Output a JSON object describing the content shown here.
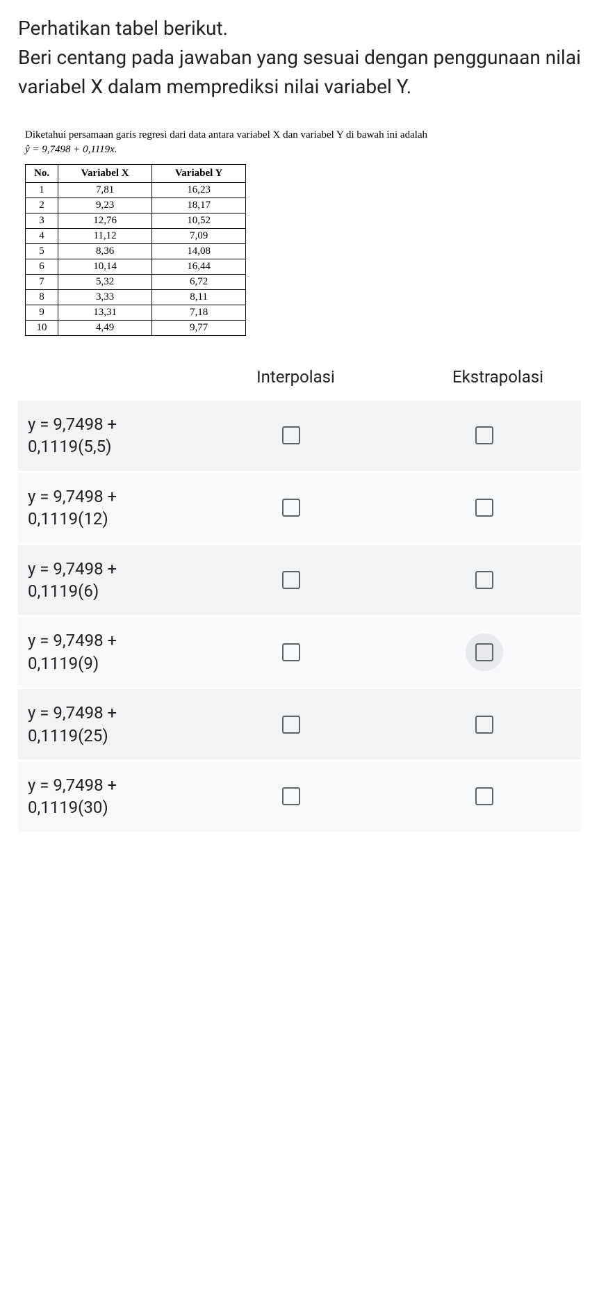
{
  "question": "Perhatikan tabel berikut.\nBeri centang pada jawaban yang sesuai dengan penggunaan nilai variabel X dalam memprediksi nilai variabel Y.",
  "info_text": "Diketahui persamaan garis regresi dari data antara variabel X dan variabel Y di bawah ini adalah",
  "equation": "ŷ = 9,7498 + 0,1119x.",
  "table": {
    "headers": [
      "No.",
      "Variabel X",
      "Variabel Y"
    ],
    "rows": [
      [
        "1",
        "7,81",
        "16,23"
      ],
      [
        "2",
        "9,23",
        "18,17"
      ],
      [
        "3",
        "12,76",
        "10,52"
      ],
      [
        "4",
        "11,12",
        "7,09"
      ],
      [
        "5",
        "8,36",
        "14,08"
      ],
      [
        "6",
        "10,14",
        "16,44"
      ],
      [
        "7",
        "5,32",
        "6,72"
      ],
      [
        "8",
        "3,33",
        "8,11"
      ],
      [
        "9",
        "13,31",
        "7,18"
      ],
      [
        "10",
        "4,49",
        "9,77"
      ]
    ]
  },
  "columns": {
    "interpolasi": "Interpolasi",
    "ekstrapolasi": "Ekstrapolasi"
  },
  "answers": [
    {
      "label": "y = 9,7498 + 0,1119(5,5)",
      "highlight_col": -1
    },
    {
      "label": "y = 9,7498 + 0,1119(12)",
      "highlight_col": -1
    },
    {
      "label": "y = 9,7498 + 0,1119(6)",
      "highlight_col": -1
    },
    {
      "label": "y = 9,7498 + 0,1119(9)",
      "highlight_col": 1
    },
    {
      "label": "y = 9,7498 + 0,1119(25)",
      "highlight_col": -1
    },
    {
      "label": "y = 9,7498 + 0,1119(30)",
      "highlight_col": -1
    }
  ]
}
